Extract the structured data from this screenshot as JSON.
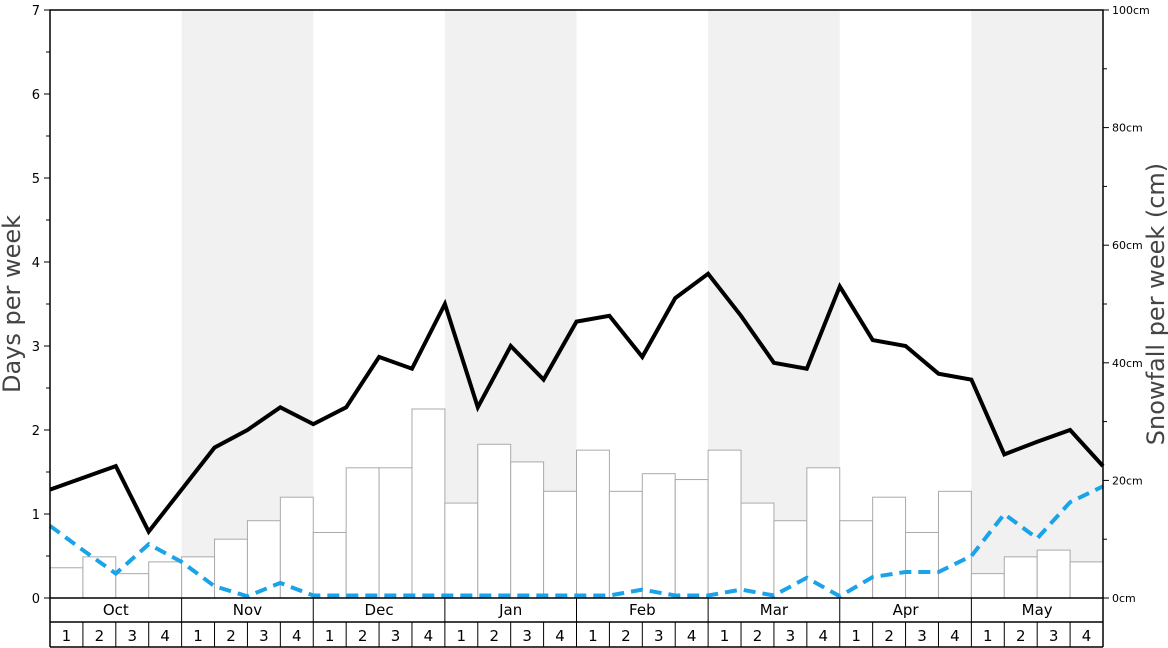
{
  "chart_data": {
    "type": "bar",
    "title": "",
    "ylabel_left": "Days per week",
    "ylabel_right": "Snowfall per week (cm)",
    "ylim_left": [
      0,
      7
    ],
    "ylim_right": [
      0,
      100
    ],
    "left_ticks": [
      "0",
      "1",
      "2",
      "3",
      "4",
      "5",
      "6",
      "7"
    ],
    "right_ticks": [
      "0cm",
      "20cm",
      "40cm",
      "60cm",
      "80cm",
      "100cm"
    ],
    "months": [
      "Oct",
      "Nov",
      "Dec",
      "Jan",
      "Feb",
      "Mar",
      "Apr",
      "May"
    ],
    "weeks": [
      "1",
      "2",
      "3",
      "4"
    ],
    "shaded_months": [
      "Nov",
      "Jan",
      "Mar",
      "May"
    ],
    "series": [
      {
        "kind": "bar",
        "axis": "left",
        "color": "#ffffff",
        "stroke": "#aaaaaa",
        "values": [
          0.36,
          0.49,
          0.29,
          0.43,
          0.49,
          0.7,
          0.92,
          1.2,
          0.78,
          1.55,
          1.55,
          2.25,
          1.13,
          1.83,
          1.62,
          1.27,
          1.76,
          1.27,
          1.48,
          1.41,
          1.76,
          1.13,
          0.92,
          1.55,
          0.92,
          1.2,
          0.78,
          1.27,
          0.29,
          0.49,
          0.57,
          0.43
        ]
      },
      {
        "kind": "line",
        "axis": "left",
        "color": "#000000",
        "values": [
          1.29,
          1.43,
          1.57,
          0.79,
          1.29,
          1.79,
          2.0,
          2.27,
          2.07,
          2.27,
          2.87,
          2.73,
          3.5,
          2.27,
          3.0,
          2.6,
          3.29,
          3.36,
          2.87,
          3.57,
          3.86,
          3.36,
          2.8,
          2.73,
          3.71,
          3.07,
          3.0,
          2.67,
          2.6,
          1.71,
          1.86,
          2.0,
          1.57
        ]
      },
      {
        "kind": "line",
        "axis": "left",
        "color": "#1aa3e8",
        "dashed": true,
        "values": [
          0.86,
          0.57,
          0.29,
          0.64,
          0.43,
          0.14,
          0.02,
          0.18,
          0.03,
          0.03,
          0.03,
          0.03,
          0.03,
          0.03,
          0.03,
          0.03,
          0.03,
          0.03,
          0.1,
          0.03,
          0.03,
          0.1,
          0.03,
          0.24,
          0.02,
          0.25,
          0.31,
          0.31,
          0.5,
          1.0,
          0.71,
          1.14,
          1.33
        ]
      }
    ]
  }
}
